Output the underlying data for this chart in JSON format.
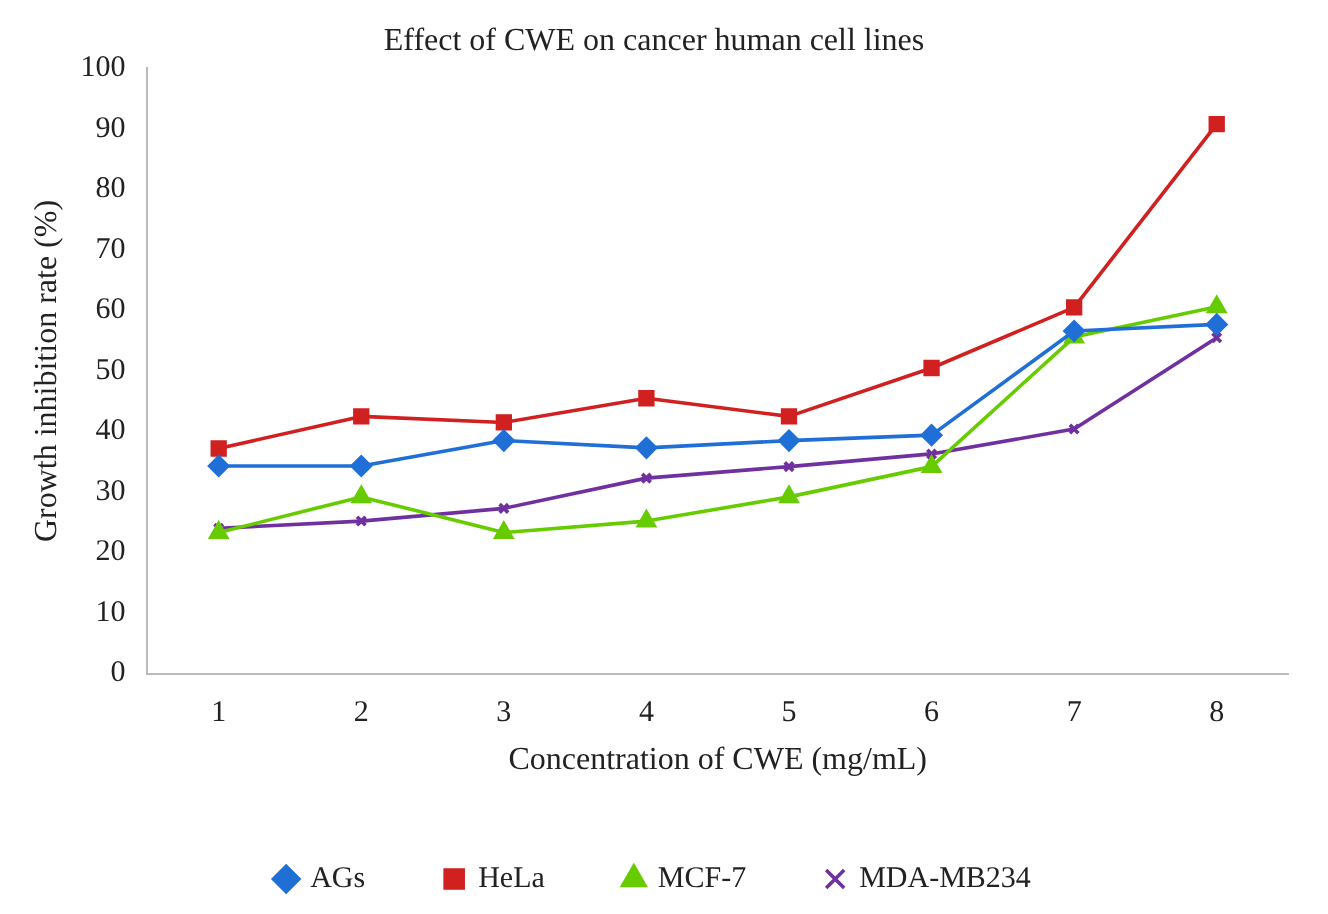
{
  "chart_data": {
    "type": "line",
    "title": "Effect of CWE on cancer human cell lines",
    "xlabel": "Concentration of CWE (mg/mL)",
    "ylabel": "Growth inhibition rate (%)",
    "categories": [
      "1",
      "2",
      "3",
      "4",
      "5",
      "6",
      "7",
      "8"
    ],
    "series": [
      {
        "name": "AGs",
        "color": "#1f6fd6",
        "marker": "diamond",
        "values": [
          34.3,
          34.3,
          38.5,
          37.3,
          38.5,
          39.4,
          56.6,
          57.7
        ]
      },
      {
        "name": "HeLa",
        "color": "#d02020",
        "marker": "square",
        "values": [
          37.2,
          42.5,
          41.5,
          45.5,
          42.5,
          50.5,
          60.5,
          90.8
        ]
      },
      {
        "name": "MCF-7",
        "color": "#66cc00",
        "marker": "triangle",
        "values": [
          23.3,
          29.2,
          23.3,
          25.2,
          29.2,
          34.2,
          55.6,
          60.6
        ]
      },
      {
        "name": "MDA-MB234",
        "color": "#7030a0",
        "marker": "cross",
        "values": [
          24,
          25.2,
          27.3,
          32.3,
          34.2,
          36.3,
          40.4,
          55.5
        ]
      }
    ],
    "ylim": [
      0,
      100
    ],
    "yticks": [
      0,
      10,
      20,
      30,
      40,
      50,
      60,
      70,
      80,
      90,
      100
    ],
    "grid": false,
    "legend": "bottom"
  }
}
